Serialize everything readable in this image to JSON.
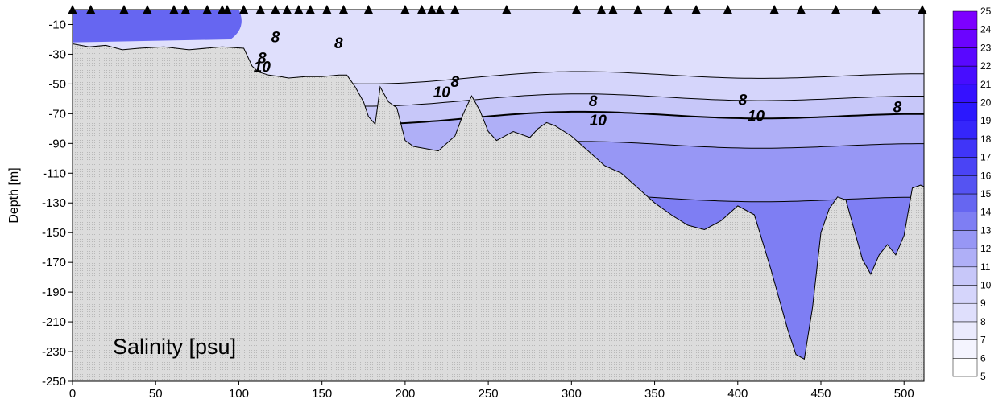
{
  "chart_data": {
    "type": "heatmap",
    "title": "Salinity [psu]",
    "xlabel": "",
    "ylabel": "Depth [m]",
    "xlim": [
      0,
      512
    ],
    "ylim": [
      -250,
      0
    ],
    "x_ticks": [
      0,
      50,
      100,
      150,
      200,
      250,
      300,
      350,
      400,
      450,
      500
    ],
    "y_ticks": [
      -10,
      -30,
      -50,
      -70,
      -90,
      -110,
      -130,
      -150,
      -170,
      -190,
      -210,
      -230,
      -250
    ],
    "colorbar": {
      "levels": [
        5,
        6,
        7,
        8,
        9,
        10,
        11,
        12,
        13,
        14,
        15,
        16,
        17,
        18,
        19,
        20,
        21,
        22,
        23,
        24,
        25
      ],
      "low_color": "#ffffff",
      "high_color": "#7a00ff"
    },
    "station_x": [
      0,
      11,
      31,
      45,
      61,
      68,
      81,
      90,
      93,
      103,
      113,
      122,
      129,
      136,
      143,
      153,
      163,
      178,
      200,
      210,
      216,
      221,
      230,
      261,
      303,
      318,
      325,
      340,
      358,
      375,
      394,
      422,
      438,
      459,
      483,
      511
    ],
    "bathymetry": {
      "x": [
        0,
        10,
        20,
        30,
        40,
        55,
        70,
        90,
        103,
        108,
        112,
        118,
        125,
        130,
        140,
        150,
        160,
        165,
        170,
        175,
        178,
        182,
        185,
        190,
        195,
        200,
        205,
        210,
        215,
        220,
        225,
        230,
        235,
        240,
        245,
        250,
        255,
        260,
        265,
        270,
        275,
        280,
        285,
        290,
        300,
        310,
        320,
        330,
        340,
        350,
        360,
        370,
        380,
        390,
        400,
        410,
        420,
        425,
        430,
        435,
        440,
        445,
        450,
        455,
        460,
        465,
        470,
        475,
        480,
        485,
        490,
        495,
        500,
        505,
        510,
        512
      ],
      "depth": [
        -23,
        -25,
        -24,
        -27,
        -26,
        -25,
        -27,
        -25,
        -26,
        -38,
        -42,
        -44,
        -45,
        -46,
        -45,
        -45,
        -44,
        -44,
        -52,
        -62,
        -72,
        -77,
        -52,
        -62,
        -66,
        -88,
        -92,
        -93,
        -94,
        -95,
        -90,
        -85,
        -70,
        -58,
        -68,
        -82,
        -88,
        -85,
        -82,
        -84,
        -86,
        -80,
        -76,
        -78,
        -85,
        -95,
        -105,
        -110,
        -120,
        -130,
        -138,
        -145,
        -148,
        -142,
        -132,
        -138,
        -175,
        -195,
        -215,
        -232,
        -235,
        -200,
        -150,
        -134,
        -126,
        -128,
        -148,
        -168,
        -178,
        -165,
        -158,
        -165,
        -152,
        -120,
        -118,
        -119
      ]
    },
    "contour_labels": [
      {
        "text": "8",
        "x": 122,
        "y": -22
      },
      {
        "text": "8",
        "x": 160,
        "y": -26
      },
      {
        "text": "8",
        "x": 114,
        "y": -36
      },
      {
        "text": "10",
        "x": 114,
        "y": -42
      },
      {
        "text": "8",
        "x": 230,
        "y": -52
      },
      {
        "text": "10",
        "x": 222,
        "y": -59
      },
      {
        "text": "8",
        "x": 313,
        "y": -65
      },
      {
        "text": "8",
        "x": 403,
        "y": -64
      },
      {
        "text": "8",
        "x": 496,
        "y": -69
      },
      {
        "text": "10",
        "x": 316,
        "y": -78
      },
      {
        "text": "10",
        "x": 411,
        "y": -75
      }
    ],
    "grid": false,
    "legend": "colorbar-right"
  }
}
